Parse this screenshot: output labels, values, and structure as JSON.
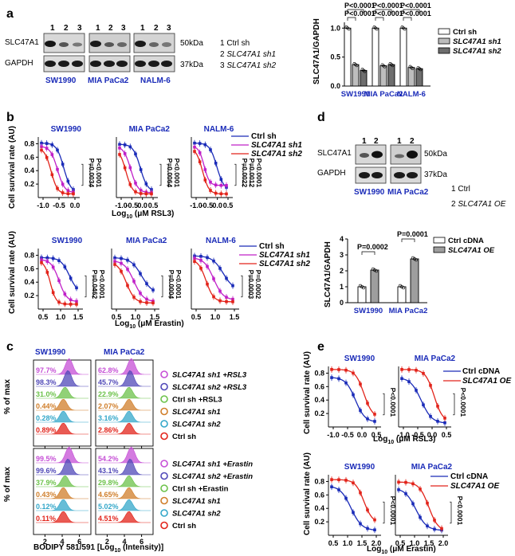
{
  "panels": {
    "a": {
      "letter": "a",
      "lanes": [
        "1",
        "2",
        "3"
      ],
      "blot_labels": [
        "SLC47A1",
        "GAPDH"
      ],
      "mw": [
        "50kDa",
        "37kDa"
      ],
      "cell_lines": [
        "SW1990",
        "MIA PaCa2",
        "NALM-6"
      ],
      "legend_lines": [
        {
          "num": "1",
          "text": "Ctrl sh"
        },
        {
          "num": "2",
          "text": "SLC47A1 sh1"
        },
        {
          "num": "3",
          "text": "SLC47A1 sh2"
        }
      ],
      "bar_chart": {
        "ylabel": "SLC47A1/GAPDH",
        "yticks": [
          "0.0",
          "0.5",
          "1.0"
        ],
        "pvals": [
          "P<0.0001",
          "P<0.0001",
          "P<0.0001",
          "P<0.0001",
          "P<0.0001",
          "P<0.0001"
        ],
        "legend": [
          "Ctrl sh",
          "SLC47A1 sh1",
          "SLC47A1 sh2"
        ]
      }
    },
    "b": {
      "letter": "b",
      "ylabel": "Cell survival rate (AU)",
      "top_titles": [
        "SW1990",
        "MIA PaCa2",
        "NALM-6"
      ],
      "top_xlabel": "Log10 (μM RSL3)",
      "top_xticks": [
        "-1.0",
        "-0.5",
        "0.0"
      ],
      "top_xticks_n6": [
        "-1.0",
        "-0.5",
        "0.0",
        "0.5"
      ],
      "top_xticks_mia": [
        "-1.0",
        "-0.5",
        "0.0",
        "0.5"
      ],
      "top_yticks": [
        "0.2",
        "0.4",
        "0.6",
        "0.8"
      ],
      "top_pvals": [
        [
          "P=0.0034",
          "P<0.0001"
        ],
        [
          "P=0.0064",
          "P<0.0001"
        ],
        [
          "P=0.0022",
          "P=0.0012",
          "P<0.0001"
        ]
      ],
      "legend": [
        "Ctrl sh",
        "SLC47A1 sh1",
        "SLC47A1 sh2"
      ],
      "bottom_titles": [
        "SW1990",
        "MIA PaCa2",
        "NALM-6"
      ],
      "bottom_xlabel": "Log10 (μM Erastin)",
      "bottom_xticks": [
        "0.5",
        "1.0",
        "1.5"
      ],
      "bottom_yticks": [
        "0.2",
        "0.4",
        "0.6",
        "0.8"
      ],
      "bottom_pvals": [
        [
          "P=0.0462",
          "P<0.0001"
        ],
        [
          "P=0.0004",
          "P<0.0001"
        ],
        [
          "P=0.0003",
          "P=0.0002"
        ]
      ]
    },
    "c": {
      "letter": "c",
      "titles": [
        "SW1990",
        "MIA PaCa2"
      ],
      "ylabel": "% of max",
      "xlabel": "BODIPY 581/591 [Log10 (Intensity)]",
      "xticks": [
        "2",
        "4",
        "6"
      ],
      "top_pcts": {
        "sw": [
          "97.7%",
          "98.3%",
          "31.0%",
          "0.44%",
          "0.28%",
          "0.89%"
        ],
        "mia": [
          "62.8%",
          "45.7%",
          "22.9%",
          "2.07%",
          "3.16%",
          "2.86%"
        ]
      },
      "bottom_pcts": {
        "sw": [
          "99.5%",
          "99.6%",
          "37.9%",
          "0.43%",
          "0.12%",
          "0.11%"
        ],
        "mia": [
          "54.2%",
          "43.1%",
          "29.8%",
          "4.65%",
          "5.02%",
          "4.51%"
        ]
      },
      "top_legend": [
        "SLC47A1 sh1 +RSL3",
        "SLC47A1 sh2 +RSL3",
        "Ctrl sh +RSL3",
        "SLC47A1 sh1",
        "SLC47A1 sh2",
        "Ctrl sh"
      ],
      "bottom_legend": [
        "SLC47A1 sh1 +Erastin",
        "SLC47A1 sh2 +Erastin",
        "Ctrl sh +Erastin",
        "SLC47A1 sh1",
        "SLC47A1 sh2",
        "Ctrl sh"
      ],
      "colors": [
        "#c64fd6",
        "#5048b8",
        "#6cc24a",
        "#d07e2a",
        "#33a7c9",
        "#e2231a"
      ]
    },
    "d": {
      "letter": "d",
      "lanes": [
        "1",
        "2"
      ],
      "blot_labels": [
        "SLC47A1",
        "GAPDH"
      ],
      "mw": [
        "50kDa",
        "37kDa"
      ],
      "cell_lines": [
        "SW1990",
        "MIA PaCa2"
      ],
      "legend_lines": [
        {
          "num": "1",
          "text": "Ctrl"
        },
        {
          "num": "2",
          "text": "SLC47A1  OE"
        }
      ],
      "bar_chart": {
        "ylabel": "SLC47A1/GAPDH",
        "yticks": [
          "0",
          "1",
          "2",
          "3",
          "4"
        ],
        "pvals": [
          "P=0.0002",
          "P=0.0001"
        ],
        "legend": [
          "Ctrl cDNA",
          "SLC47A1 OE"
        ]
      }
    },
    "e": {
      "letter": "e",
      "ylabel": "Cell survival rate (AU)",
      "top_titles": [
        "SW1990",
        "MIA PaCa2"
      ],
      "top_xlabel": "Log10 (μM RSL3)",
      "top_xticks": [
        "-1.0",
        "-0.5",
        "0.0",
        "0.5"
      ],
      "top_yticks": [
        "0.2",
        "0.4",
        "0.6",
        "0.8"
      ],
      "top_pvals": [
        "P<0.0001",
        "P<0.0001"
      ],
      "legend": [
        "Ctrl cDNA",
        "SLC47A1 OE"
      ],
      "bottom_titles": [
        "SW1990",
        "MIA PaCa2"
      ],
      "bottom_xlabel": "Log10 (μM Erastin)",
      "bottom_xticks_sw": [
        "0.5",
        "1.0",
        "1.5",
        "2.0"
      ],
      "bottom_xticks_mia": [
        "0.5",
        "1.0",
        "1.5",
        "2.0"
      ],
      "bottom_yticks": [
        "0.2",
        "0.4",
        "0.6",
        "0.8"
      ],
      "bottom_pvals": [
        "P<0.0001",
        "P<0.0001"
      ]
    }
  },
  "chart_data": [
    {
      "type": "bar",
      "panel": "a",
      "ylabel": "SLC47A1/GAPDH",
      "ylim": [
        0,
        1.1
      ],
      "categories": [
        "SW1990",
        "MIA PaCa2",
        "NALM-6"
      ],
      "series": [
        {
          "name": "Ctrl sh",
          "values": [
            1.0,
            1.0,
            1.0
          ]
        },
        {
          "name": "SLC47A1 sh1",
          "values": [
            0.37,
            0.35,
            0.32
          ]
        },
        {
          "name": "SLC47A1 sh2",
          "values": [
            0.27,
            0.37,
            0.3
          ]
        }
      ],
      "colors": [
        "#ffffff",
        "#bdbdbd",
        "#6e6e6e"
      ]
    },
    {
      "type": "bar",
      "panel": "d",
      "ylabel": "SLC47A1/GAPDH",
      "ylim": [
        0,
        4
      ],
      "categories": [
        "SW1990",
        "MIA PaCa2"
      ],
      "series": [
        {
          "name": "Ctrl cDNA",
          "values": [
            1.0,
            1.0
          ]
        },
        {
          "name": "SLC47A1 OE",
          "values": [
            2.05,
            2.75
          ]
        }
      ],
      "colors": [
        "#ffffff",
        "#9e9e9e"
      ]
    }
  ]
}
